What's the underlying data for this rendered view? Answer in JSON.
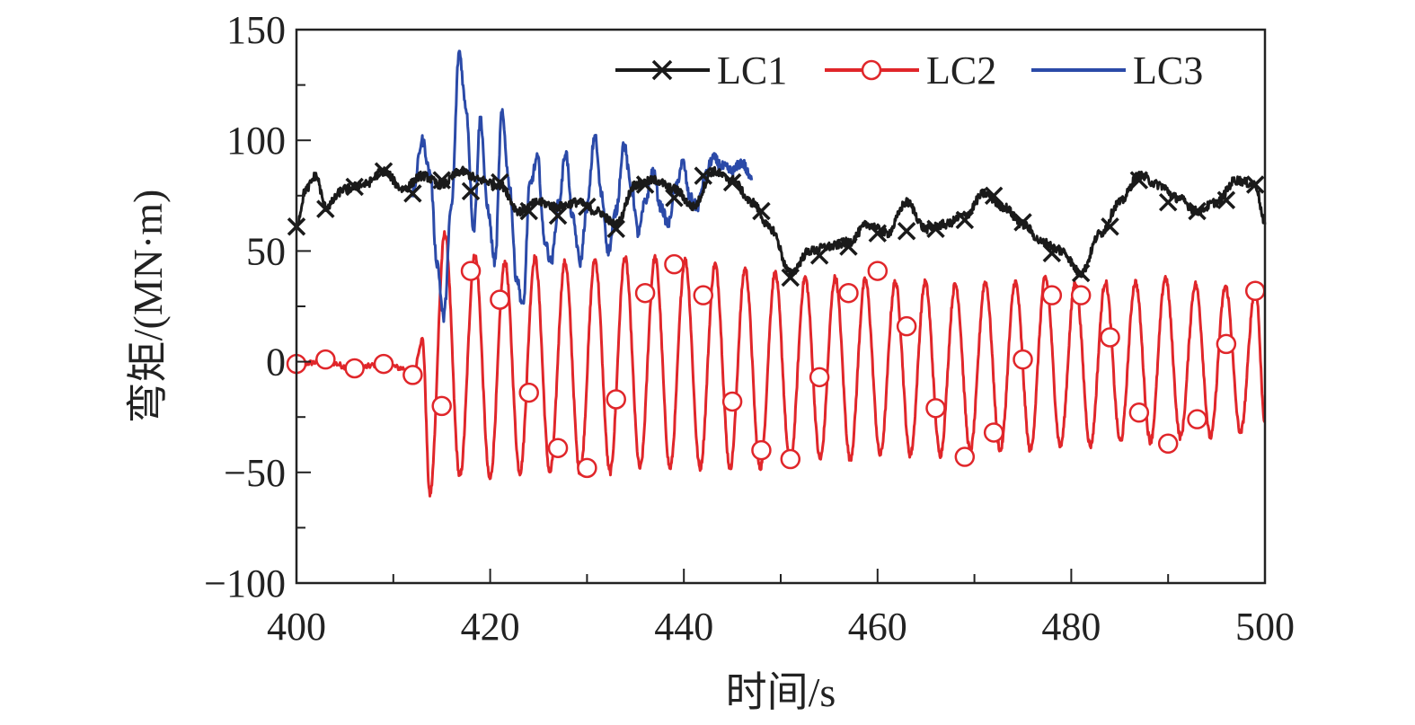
{
  "chart_data": {
    "type": "line",
    "xlabel": "时间/s",
    "ylabel": "弯矩/(MN·m)",
    "xlim": [
      400,
      500
    ],
    "ylim": [
      -100,
      150
    ],
    "x_ticks": [
      400,
      420,
      440,
      460,
      480,
      500
    ],
    "y_ticks": [
      150,
      100,
      50,
      0,
      -50,
      -100
    ],
    "grid": false,
    "legend_position": "top-right",
    "series": [
      {
        "name": "LC1",
        "color": "#1a1a1a",
        "marker": "x",
        "x": [
          400,
          401,
          402,
          403,
          405,
          407,
          409,
          411,
          413,
          415,
          417,
          419,
          421,
          423,
          425,
          427,
          429,
          431,
          433,
          435,
          437,
          439,
          441,
          443,
          445,
          447,
          449,
          451,
          453,
          455,
          457,
          459,
          461,
          463,
          465,
          467,
          469,
          471,
          473,
          475,
          477,
          479,
          481,
          483,
          485,
          487,
          489,
          491,
          493,
          495,
          497,
          499,
          500
        ],
        "values": [
          62,
          78,
          84,
          70,
          78,
          80,
          86,
          78,
          84,
          80,
          86,
          82,
          80,
          68,
          72,
          70,
          72,
          68,
          62,
          80,
          82,
          78,
          70,
          86,
          82,
          72,
          60,
          40,
          50,
          52,
          54,
          62,
          58,
          72,
          60,
          62,
          66,
          76,
          70,
          62,
          54,
          50,
          40,
          58,
          72,
          84,
          80,
          74,
          68,
          72,
          82,
          80,
          62
        ],
        "marker_x": [
          400,
          403,
          406,
          409,
          412,
          415,
          418,
          421,
          424,
          427,
          430,
          433,
          436,
          439,
          442,
          445,
          448,
          451,
          454,
          457,
          460,
          463,
          466,
          469,
          472,
          475,
          478,
          481,
          484,
          487,
          490,
          493,
          496,
          499
        ],
        "marker_values": [
          61,
          69,
          79,
          86,
          76,
          82,
          77,
          81,
          68,
          66,
          70,
          60,
          80,
          74,
          84,
          81,
          68,
          38,
          48,
          52,
          58,
          59,
          60,
          64,
          75,
          63,
          49,
          40,
          61,
          82,
          72,
          68,
          73,
          80
        ]
      },
      {
        "name": "LC2",
        "color": "#e0262a",
        "marker": "o",
        "base_x": [
          400,
          403,
          406,
          409,
          411,
          412,
          413
        ],
        "base_values": [
          -1,
          0,
          -3,
          -1,
          -3,
          -6,
          10
        ],
        "oscillation": {
          "start": 413,
          "period": 3.1,
          "center": -4,
          "peaks": [
            20,
            58,
            48,
            45,
            47,
            45,
            46,
            47,
            47,
            46,
            44,
            42,
            40,
            38,
            38,
            37,
            36,
            36,
            35,
            36,
            36,
            38,
            36,
            36,
            36,
            38,
            35,
            34,
            34,
            34
          ],
          "troughs": [
            -60,
            -52,
            -53,
            -50,
            -50,
            -50,
            -50,
            -48,
            -48,
            -48,
            -48,
            -48,
            -46,
            -44,
            -44,
            -42,
            -42,
            -42,
            -40,
            -40,
            -40,
            -38,
            -38,
            -36,
            -36,
            -34,
            -34,
            -32,
            -32,
            -30
          ]
        },
        "marker_x": [
          400,
          403,
          406,
          409,
          412,
          415,
          418,
          421,
          424,
          427,
          430,
          433,
          436,
          439,
          442,
          445,
          448,
          451,
          454,
          457,
          460,
          463,
          466,
          469,
          472,
          475,
          478,
          481,
          484,
          487,
          490,
          493,
          496,
          499
        ],
        "marker_values": [
          -1,
          1,
          -3,
          -1,
          -6,
          -20,
          41,
          28,
          -14,
          -39,
          -48,
          -17,
          31,
          44,
          30,
          -18,
          -40,
          -44,
          -7,
          31,
          41,
          16,
          -21,
          -43,
          -32,
          1,
          30,
          30,
          11,
          -23,
          -37,
          -26,
          8,
          32
        ]
      },
      {
        "name": "LC3",
        "color": "#2b4aa8",
        "marker": "none",
        "x": [
          412,
          413,
          413.8,
          414.5,
          415.2,
          416,
          416.8,
          417.5,
          418.3,
          419,
          419.7,
          420.5,
          421.2,
          422,
          422.7,
          423.4,
          424.1,
          424.9,
          425.6,
          426.3,
          427.1,
          427.8,
          428.5,
          429.3,
          430,
          430.8,
          431.5,
          432.2,
          433,
          433.8,
          434.6,
          435.3,
          436,
          436.8,
          437.6,
          438.4,
          439.1,
          439.9,
          440.6,
          441.4,
          442.2,
          443,
          444,
          445,
          446,
          447
        ],
        "values": [
          76,
          100,
          85,
          45,
          20,
          70,
          140,
          115,
          60,
          110,
          70,
          45,
          112,
          80,
          38,
          25,
          80,
          92,
          55,
          45,
          72,
          95,
          65,
          45,
          70,
          102,
          75,
          50,
          68,
          98,
          78,
          58,
          72,
          86,
          70,
          62,
          78,
          90,
          74,
          70,
          84,
          92,
          88,
          86,
          90,
          82
        ]
      }
    ]
  }
}
